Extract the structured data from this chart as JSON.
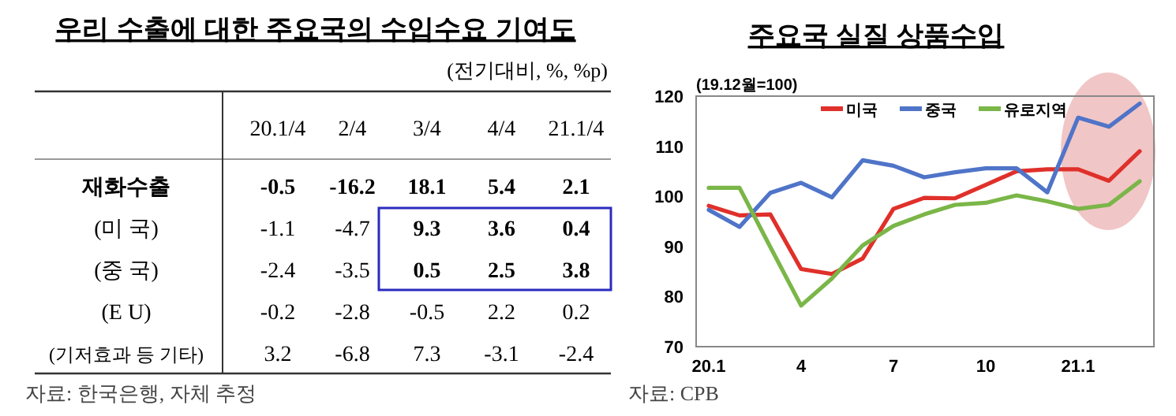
{
  "chart_data": [
    {
      "type": "heatmap",
      "title": "우리 수출에 대한 주요국의 수입수요 기여도",
      "subtitle": "(전기대비, %, %p)",
      "categories": [
        "20.1/4",
        "2/4",
        "3/4",
        "4/4",
        "21.1/4"
      ],
      "y_categories": [
        "재화수출",
        "(미 국)",
        "(중 국)",
        "(E U)",
        "(기저효과 등 기타)"
      ],
      "cells": [
        [
          -0.5,
          -16.2,
          18.1,
          5.4,
          2.1
        ],
        [
          -1.1,
          -4.7,
          9.3,
          3.6,
          0.4
        ],
        [
          -2.4,
          -3.5,
          0.5,
          2.5,
          3.8
        ],
        [
          -0.2,
          -2.8,
          -0.5,
          2.2,
          0.2
        ],
        [
          3.2,
          -6.8,
          7.3,
          -3.1,
          -2.4
        ]
      ],
      "data_labels": true,
      "annotations": [
        "자료: 한국은행, 자체 추정"
      ]
    },
    {
      "type": "line",
      "title": "주요국 실질 상품수입",
      "subtitle": "(19.12월=100)",
      "categories": [
        "20.1",
        null,
        null,
        "4",
        null,
        null,
        "7",
        null,
        null,
        "10",
        null,
        null,
        "21.1",
        null,
        null
      ],
      "series": [
        {
          "name": "미국",
          "color": "#e0302a",
          "values": [
            98.1,
            96.2,
            96.4,
            85.5,
            84.5,
            87.6,
            97.5,
            99.7,
            99.6,
            102.3,
            105.0,
            105.4,
            105.4,
            103.1,
            109.0
          ]
        },
        {
          "name": "중국",
          "color": "#4f74c8",
          "values": [
            97.3,
            93.9,
            100.7,
            102.7,
            99.8,
            107.2,
            106.1,
            103.8,
            104.8,
            105.6,
            105.6,
            100.8,
            115.7,
            113.9,
            118.5
          ]
        },
        {
          "name": "유로지역",
          "color": "#7ab648",
          "values": [
            101.7,
            101.7,
            89.9,
            78.2,
            83.6,
            90.2,
            94.1,
            96.4,
            98.3,
            98.7,
            100.2,
            99.0,
            97.5,
            98.3,
            103.0
          ]
        }
      ],
      "ylim": [
        70,
        120
      ],
      "yticks": [
        70,
        80,
        90,
        100,
        110,
        120
      ],
      "legend": "top",
      "grid": false,
      "marker": "none",
      "line_style": "solid",
      "annotations": [
        "자료: CPB"
      ]
    }
  ]
}
